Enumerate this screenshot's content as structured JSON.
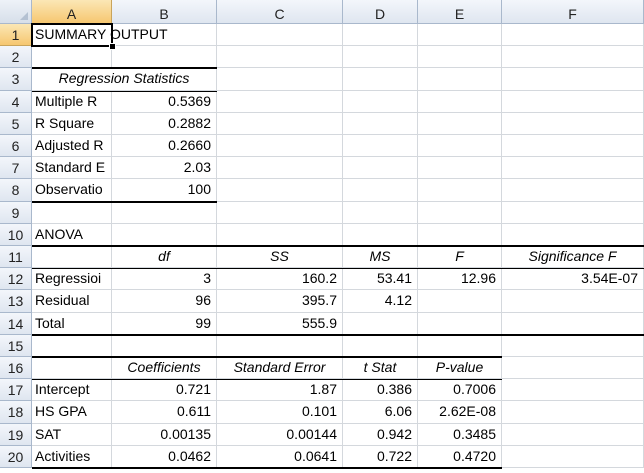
{
  "columns": [
    "A",
    "B",
    "C",
    "D",
    "E",
    "F"
  ],
  "rows": [
    "1",
    "2",
    "3",
    "4",
    "5",
    "6",
    "7",
    "8",
    "9",
    "10",
    "11",
    "12",
    "13",
    "14",
    "15",
    "16",
    "17",
    "18",
    "19",
    "20"
  ],
  "selected": {
    "column": "A",
    "row": "1"
  },
  "summary": {
    "title": "SUMMARY OUTPUT"
  },
  "regression_stats": {
    "header": "Regression Statistics",
    "rows": [
      {
        "label": "Multiple R",
        "value": "0.5369"
      },
      {
        "label": "R Square",
        "value": "0.2882"
      },
      {
        "label": "Adjusted R",
        "value": "0.2660"
      },
      {
        "label": "Standard E",
        "value": "2.03"
      },
      {
        "label": "Observatio",
        "value": "100"
      }
    ]
  },
  "anova": {
    "title": "ANOVA",
    "headers": [
      "df",
      "SS",
      "MS",
      "F",
      "Significance F"
    ],
    "rows": [
      {
        "label": "Regressioi",
        "df": "3",
        "ss": "160.2",
        "ms": "53.41",
        "f": "12.96",
        "sig": "3.54E-07"
      },
      {
        "label": "Residual",
        "df": "96",
        "ss": "395.7",
        "ms": "4.12",
        "f": "",
        "sig": ""
      },
      {
        "label": "Total",
        "df": "99",
        "ss": "555.9",
        "ms": "",
        "f": "",
        "sig": ""
      }
    ]
  },
  "coefficients": {
    "headers": [
      "Coefficients",
      "Standard Error",
      "t Stat",
      "P-value"
    ],
    "rows": [
      {
        "label": "Intercept",
        "coef": "0.721",
        "se": "1.87",
        "t": "0.386",
        "p": "0.7006"
      },
      {
        "label": "HS GPA",
        "coef": "0.611",
        "se": "0.101",
        "t": "6.06",
        "p": "2.62E-08"
      },
      {
        "label": "SAT",
        "coef": "0.00135",
        "se": "0.00144",
        "t": "0.942",
        "p": "0.3485"
      },
      {
        "label": "Activities",
        "coef": "0.0462",
        "se": "0.0641",
        "t": "0.722",
        "p": "0.4720"
      }
    ]
  }
}
